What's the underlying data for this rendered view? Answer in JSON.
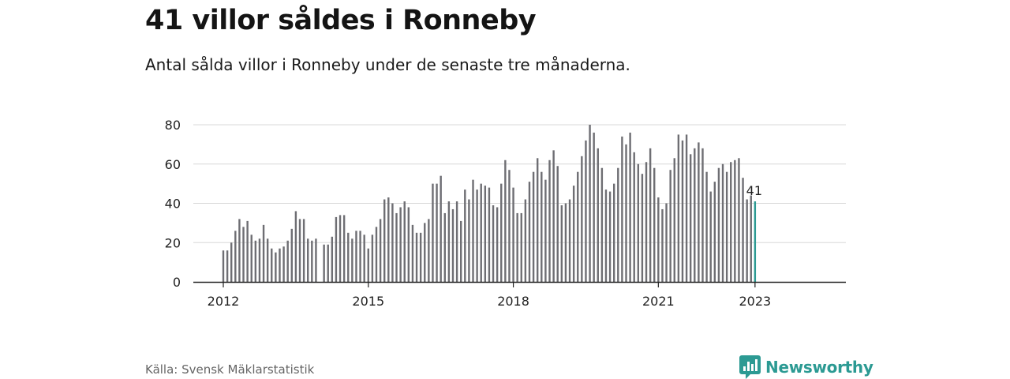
{
  "header": {
    "title": "41 villor såldes i Ronneby",
    "subtitle": "Antal sålda villor i Ronneby under de senaste tre månaderna."
  },
  "footer": {
    "source": "Källa: Svensk Mäklarstatistik",
    "brand": "Newsworthy"
  },
  "colors": {
    "bar": "#6e6e73",
    "highlight": "#2c9a93",
    "grid": "#d8d8d8",
    "axis": "#222222"
  },
  "chart_data": {
    "type": "bar",
    "title": "41 villor såldes i Ronneby",
    "xlabel": "",
    "ylabel": "",
    "ylim": [
      0,
      80
    ],
    "yticks": [
      0,
      20,
      40,
      60,
      80
    ],
    "xticks": [
      "2012",
      "2015",
      "2018",
      "2021",
      "2023"
    ],
    "grid": true,
    "highlight_label": "41",
    "x": [
      "2012-01",
      "2012-02",
      "2012-03",
      "2012-04",
      "2012-05",
      "2012-06",
      "2012-07",
      "2012-08",
      "2012-09",
      "2012-10",
      "2012-11",
      "2012-12",
      "2013-01",
      "2013-02",
      "2013-03",
      "2013-04",
      "2013-05",
      "2013-06",
      "2013-07",
      "2013-08",
      "2013-09",
      "2013-10",
      "2013-11",
      "2013-12",
      "2014-01",
      "2014-02",
      "2014-03",
      "2014-04",
      "2014-05",
      "2014-06",
      "2014-07",
      "2014-08",
      "2014-09",
      "2014-10",
      "2014-11",
      "2014-12",
      "2015-01",
      "2015-02",
      "2015-03",
      "2015-04",
      "2015-05",
      "2015-06",
      "2015-07",
      "2015-08",
      "2015-09",
      "2015-10",
      "2015-11",
      "2015-12",
      "2016-01",
      "2016-02",
      "2016-03",
      "2016-04",
      "2016-05",
      "2016-06",
      "2016-07",
      "2016-08",
      "2016-09",
      "2016-10",
      "2016-11",
      "2016-12",
      "2017-01",
      "2017-02",
      "2017-03",
      "2017-04",
      "2017-05",
      "2017-06",
      "2017-07",
      "2017-08",
      "2017-09",
      "2017-10",
      "2017-11",
      "2017-12",
      "2018-01",
      "2018-02",
      "2018-03",
      "2018-04",
      "2018-05",
      "2018-06",
      "2018-07",
      "2018-08",
      "2018-09",
      "2018-10",
      "2018-11",
      "2018-12",
      "2019-01",
      "2019-02",
      "2019-03",
      "2019-04",
      "2019-05",
      "2019-06",
      "2019-07",
      "2019-08",
      "2019-09",
      "2019-10",
      "2019-11",
      "2019-12",
      "2020-01",
      "2020-02",
      "2020-03",
      "2020-04",
      "2020-05",
      "2020-06",
      "2020-07",
      "2020-08",
      "2020-09",
      "2020-10",
      "2020-11",
      "2020-12",
      "2021-01",
      "2021-02",
      "2021-03",
      "2021-04",
      "2021-05",
      "2021-06",
      "2021-07",
      "2021-08",
      "2021-09",
      "2021-10",
      "2021-11",
      "2021-12",
      "2022-01",
      "2022-02",
      "2022-03",
      "2022-04",
      "2022-05",
      "2022-06",
      "2022-07",
      "2022-08",
      "2022-09",
      "2022-10",
      "2022-11",
      "2022-12",
      "2023-01"
    ],
    "values": [
      16,
      16,
      20,
      26,
      32,
      28,
      31,
      24,
      21,
      22,
      29,
      22,
      17,
      15,
      17,
      18,
      21,
      27,
      36,
      32,
      32,
      22,
      21,
      22,
      null,
      19,
      19,
      23,
      33,
      34,
      34,
      25,
      22,
      26,
      26,
      24,
      17,
      24,
      28,
      32,
      42,
      43,
      40,
      35,
      38,
      41,
      38,
      29,
      25,
      25,
      30,
      32,
      50,
      50,
      54,
      35,
      41,
      37,
      41,
      31,
      47,
      42,
      52,
      47,
      50,
      49,
      48,
      39,
      38,
      50,
      62,
      57,
      48,
      35,
      35,
      42,
      51,
      56,
      63,
      56,
      52,
      62,
      67,
      59,
      39,
      40,
      42,
      49,
      56,
      64,
      72,
      80,
      76,
      68,
      58,
      47,
      46,
      50,
      58,
      74,
      70,
      76,
      66,
      60,
      55,
      61,
      68,
      58,
      43,
      37,
      40,
      57,
      63,
      75,
      72,
      75,
      65,
      68,
      71,
      68,
      56,
      46,
      51,
      58,
      60,
      56,
      61,
      62,
      63,
      53,
      42,
      44,
      41
    ]
  }
}
